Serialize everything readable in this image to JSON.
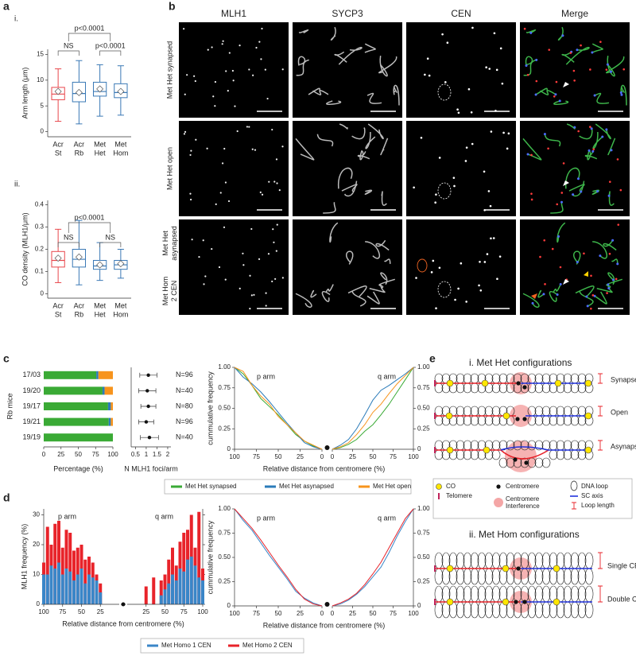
{
  "panel_labels": {
    "a": "a",
    "a_i": "i.",
    "a_ii": "ii.",
    "b": "b",
    "c": "c",
    "d": "d",
    "e": "e"
  },
  "microscopy": {
    "columns": [
      "MLH1",
      "SYCP3",
      "CEN",
      "Merge"
    ],
    "rows": [
      [
        [
          "Met Het synapsed"
        ]
      ],
      [
        [
          "Met Het open"
        ]
      ],
      [
        [
          "Met Het",
          "asynapsed"
        ],
        [
          "Met Hom",
          "2 CEN"
        ]
      ]
    ]
  },
  "diagram": {
    "title_i": "i. Met Het configurations",
    "configs_i": [
      "Synapsed",
      "Open",
      "Asynapsed"
    ],
    "legend": [
      [
        "CO"
      ],
      [
        "Telomere"
      ],
      [
        "Centromere"
      ],
      [
        "Centromere",
        "Interference"
      ],
      [
        "DNA loop"
      ],
      [
        "SC axis"
      ],
      [
        "Loop length"
      ]
    ],
    "title_ii": "ii. Met Hom configurations",
    "configs_ii": [
      "Single CEN",
      "Double CEN"
    ]
  },
  "chart_data": [
    {
      "type": "box",
      "ylabel": "Arm length (μm)",
      "categories": [
        [
          "Acr",
          "St"
        ],
        [
          "Acr",
          "Rb"
        ],
        [
          "Met",
          "Het"
        ],
        [
          "Met",
          "Hom"
        ]
      ],
      "boxes": [
        {
          "min": 2,
          "q1": 6.2,
          "median": 7.3,
          "q3": 8.6,
          "max": 12.2,
          "mean": 7.8,
          "color": "#e8464b"
        },
        {
          "min": 1.5,
          "q1": 5.8,
          "median": 7.4,
          "q3": 9.6,
          "max": 13.8,
          "mean": 7.6,
          "color": "#3a78b5"
        },
        {
          "min": 3,
          "q1": 6.9,
          "median": 7.8,
          "q3": 9.6,
          "max": 13,
          "mean": 8.3,
          "color": "#3a78b5"
        },
        {
          "min": 3.2,
          "q1": 6.6,
          "median": 7.6,
          "q3": 9.3,
          "max": 12.8,
          "mean": 7.8,
          "color": "#3a78b5"
        }
      ],
      "ylim": [
        -1,
        16
      ],
      "yticks": [
        0,
        5,
        10,
        15
      ],
      "annotations": [
        "p<0.0001",
        "NS",
        "p<0.0001"
      ]
    },
    {
      "type": "box",
      "ylabel": "CO density (MLH1/μm)",
      "categories": [
        [
          "Acr",
          "St"
        ],
        [
          "Acr",
          "Rb"
        ],
        [
          "Met",
          "Het"
        ],
        [
          "Met",
          "Hom"
        ]
      ],
      "boxes": [
        {
          "min": 0.05,
          "q1": 0.12,
          "median": 0.15,
          "q3": 0.19,
          "max": 0.29,
          "mean": 0.16,
          "color": "#e8464b"
        },
        {
          "min": 0.04,
          "q1": 0.12,
          "median": 0.155,
          "q3": 0.2,
          "max": 0.33,
          "mean": 0.165,
          "color": "#3a78b5"
        },
        {
          "min": 0.06,
          "q1": 0.11,
          "median": 0.125,
          "q3": 0.15,
          "max": 0.23,
          "mean": 0.13,
          "color": "#3a78b5"
        },
        {
          "min": 0.07,
          "q1": 0.11,
          "median": 0.13,
          "q3": 0.15,
          "max": 0.2,
          "mean": 0.135,
          "color": "#3a78b5"
        }
      ],
      "ylim": [
        -0.02,
        0.42
      ],
      "yticks": [
        0,
        0.1,
        0.2,
        0.3,
        0.4
      ],
      "annotations": [
        "p<0.0001",
        "NS",
        "NS"
      ]
    },
    {
      "type": "stacked-barh",
      "ylabel": "Rb mice",
      "xlabel": "Percentage (%)",
      "categories": [
        "17/03",
        "19/20",
        "19/17",
        "19/21",
        "19/19"
      ],
      "xlim": [
        0,
        100
      ],
      "xticks": [
        0,
        25,
        50,
        75,
        100
      ],
      "series": [
        {
          "name": "Met Het synapsed",
          "color": "#3aaa35",
          "values": [
            76,
            85,
            93,
            94,
            100
          ]
        },
        {
          "name": "Met Het asynapsed",
          "color": "#2b7bb9",
          "values": [
            3,
            3,
            4,
            3,
            0
          ]
        },
        {
          "name": "Met Het open",
          "color": "#f7941d",
          "values": [
            21,
            12,
            3,
            3,
            0
          ]
        }
      ]
    },
    {
      "type": "dot-error",
      "xlabel": "N MLH1 foci/arm",
      "values": [
        1.1,
        1.05,
        1.1,
        1.0,
        1.15
      ],
      "errors": [
        0.4,
        0.4,
        0.35,
        0.35,
        0.42
      ],
      "xlim": [
        0.3,
        2.15
      ],
      "xticks": [
        0.5,
        1,
        1.5,
        2
      ],
      "annotations": [
        "N=96",
        "N=40",
        "N=80",
        "N=96",
        "N=40"
      ]
    },
    {
      "type": "mirror-line",
      "ylabel": "cummulative frequency",
      "xlabel": "Relative distance from centromere (%)",
      "arm_labels": [
        "p arm",
        "q arm"
      ],
      "x": [
        0,
        10,
        20,
        30,
        40,
        50,
        60,
        70,
        80,
        90,
        100
      ],
      "xlim": [
        0,
        100
      ],
      "xticks": [
        0,
        25,
        50,
        75,
        100
      ],
      "ylim": [
        0,
        1
      ],
      "yticks": [
        0,
        0.25,
        {
          "value": 0.5,
          "label": "0.50"
        },
        0.75,
        {
          "value": 1,
          "label": "1.00"
        }
      ],
      "y2lim": [
        0,
        1
      ],
      "y2ticks": [
        0,
        0.25,
        {
          "value": 0.5,
          "label": "0.50"
        },
        0.75,
        {
          "value": 1,
          "label": "1.00"
        }
      ],
      "series": [
        {
          "color": "#3aaa35",
          "p_values": [
            0,
            0.04,
            0.1,
            0.18,
            0.3,
            0.42,
            0.52,
            0.62,
            0.78,
            0.92,
            1
          ],
          "q_values": [
            0,
            0.02,
            0.06,
            0.12,
            0.22,
            0.3,
            0.42,
            0.55,
            0.7,
            0.85,
            1
          ]
        },
        {
          "color": "#2b7bb9",
          "p_values": [
            0,
            0.03,
            0.08,
            0.2,
            0.32,
            0.45,
            0.58,
            0.7,
            0.8,
            0.88,
            1
          ],
          "q_values": [
            0,
            0.05,
            0.12,
            0.25,
            0.42,
            0.6,
            0.72,
            0.78,
            0.85,
            0.92,
            1
          ]
        },
        {
          "color": "#f7941d",
          "p_values": [
            0,
            0.05,
            0.1,
            0.2,
            0.3,
            0.4,
            0.55,
            0.65,
            0.78,
            0.95,
            1
          ],
          "q_values": [
            0,
            0.03,
            0.08,
            0.18,
            0.3,
            0.45,
            0.55,
            0.68,
            0.8,
            0.9,
            1
          ]
        }
      ]
    },
    {
      "type": "mirror-bar",
      "ylabel": "MLH1 frequency (%)",
      "xlabel": "Relative distance from centromere (%)",
      "arm_labels": [
        "p arm",
        "q arm"
      ],
      "x": [
        5,
        10,
        15,
        20,
        25,
        30,
        35,
        40,
        45,
        50,
        55,
        60,
        65,
        70,
        75,
        80,
        85,
        90,
        95,
        100
      ],
      "xlim": [
        0,
        100
      ],
      "xticks": [
        25,
        50,
        75,
        100
      ],
      "ylim": [
        0,
        32
      ],
      "yticks": [
        0,
        10,
        20,
        30
      ],
      "series": [
        {
          "name": "Met Homo 1 CEN",
          "color": "#3a86c8",
          "p_values": [
            0,
            0,
            0,
            0,
            4,
            8,
            9,
            10,
            7,
            12,
            10,
            8,
            11,
            12,
            10,
            14,
            12,
            13,
            10,
            10
          ],
          "q_values": [
            0,
            0,
            0,
            0,
            0,
            0,
            0,
            0,
            3,
            5,
            7,
            10,
            8,
            12,
            11,
            15,
            16,
            13,
            9,
            8
          ]
        },
        {
          "name": "Met Homo 2 CEN",
          "color": "#e8232a",
          "p_values": [
            0,
            0,
            0,
            0,
            7,
            10,
            14,
            16,
            15,
            20,
            19,
            18,
            24,
            25,
            19,
            28,
            27,
            20,
            26,
            14
          ],
          "q_values": [
            0,
            0,
            0,
            0,
            6,
            0,
            9,
            0,
            8,
            10,
            15,
            19,
            13,
            21,
            24,
            25,
            30,
            19,
            31,
            12
          ]
        }
      ]
    },
    {
      "type": "mirror-line",
      "ylabel": "cummulative frequency",
      "xlabel": "Relative distance from centromere (%)",
      "arm_labels": [
        "p arm",
        "q arm"
      ],
      "x": [
        0,
        10,
        20,
        30,
        40,
        50,
        60,
        70,
        80,
        90,
        100
      ],
      "xlim": [
        0,
        100
      ],
      "xticks": [
        0,
        25,
        50,
        75,
        100
      ],
      "ylim": [
        0,
        1
      ],
      "yticks": [
        0,
        0.25,
        {
          "value": 0.5,
          "label": "0.50"
        },
        0.75,
        {
          "value": 1,
          "label": "1.00"
        }
      ],
      "y2lim": [
        0,
        1
      ],
      "y2ticks": [
        0,
        0.25,
        {
          "value": 0.5,
          "label": "0.50"
        },
        0.75,
        {
          "value": 1,
          "label": "1.00"
        }
      ],
      "series": [
        {
          "color": "#3a86c8",
          "p_values": [
            0,
            0.03,
            0.08,
            0.15,
            0.28,
            0.4,
            0.52,
            0.65,
            0.78,
            0.88,
            1
          ],
          "q_values": [
            0,
            0.02,
            0.06,
            0.12,
            0.2,
            0.3,
            0.4,
            0.55,
            0.72,
            0.87,
            1
          ]
        },
        {
          "color": "#e8232a",
          "p_values": [
            0,
            0.02,
            0.07,
            0.17,
            0.3,
            0.42,
            0.55,
            0.68,
            0.8,
            0.9,
            1
          ],
          "q_values": [
            0,
            0.03,
            0.07,
            0.13,
            0.22,
            0.33,
            0.45,
            0.6,
            0.75,
            0.9,
            1
          ]
        }
      ]
    }
  ]
}
